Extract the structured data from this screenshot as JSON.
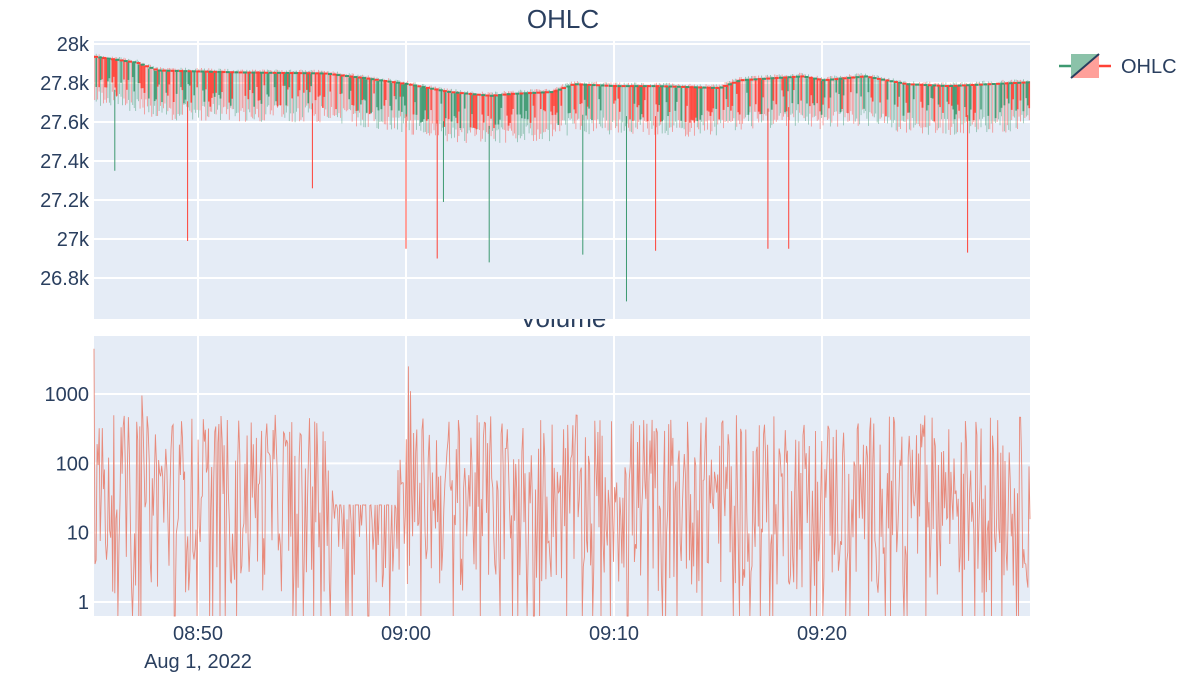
{
  "colors": {
    "plot_bg": "#e5ecf6",
    "grid": "#ffffff",
    "text": "#2a3f5f",
    "increasing": "#3d9970",
    "decreasing": "#ff4136",
    "volume_line": "#e8806e"
  },
  "legend": {
    "label": "OHLC",
    "position": "top-right",
    "icon": "candlestick-legend-icon"
  },
  "chart_data": [
    {
      "type": "candlestick",
      "title": "OHLC",
      "xlabel": "",
      "ylabel": "",
      "x_range": [
        "2022-08-01T08:45:00",
        "2022-08-01T09:30:00"
      ],
      "ylim": [
        26600,
        28000
      ],
      "yticks": [
        26800,
        27000,
        27200,
        27400,
        27600,
        27800,
        28000
      ],
      "ytick_labels": [
        "26.8k",
        "27k",
        "27.2k",
        "27.4k",
        "27.6k",
        "27.8k",
        "28k"
      ],
      "grid": true,
      "series": [
        {
          "name": "OHLC",
          "close_trend": [
            {
              "t": "08:45",
              "v": 27930
            },
            {
              "t": "08:47",
              "v": 27900
            },
            {
              "t": "08:48",
              "v": 27860
            },
            {
              "t": "08:52",
              "v": 27850
            },
            {
              "t": "08:56",
              "v": 27845
            },
            {
              "t": "08:58",
              "v": 27820
            },
            {
              "t": "09:00",
              "v": 27790
            },
            {
              "t": "09:01",
              "v": 27770
            },
            {
              "t": "09:02",
              "v": 27750
            },
            {
              "t": "09:04",
              "v": 27730
            },
            {
              "t": "09:05",
              "v": 27740
            },
            {
              "t": "09:07",
              "v": 27750
            },
            {
              "t": "09:08",
              "v": 27790
            },
            {
              "t": "09:10",
              "v": 27780
            },
            {
              "t": "09:12",
              "v": 27780
            },
            {
              "t": "09:15",
              "v": 27770
            },
            {
              "t": "09:16",
              "v": 27810
            },
            {
              "t": "09:19",
              "v": 27830
            },
            {
              "t": "09:20",
              "v": 27810
            },
            {
              "t": "09:22",
              "v": 27830
            },
            {
              "t": "09:24",
              "v": 27790
            },
            {
              "t": "09:26",
              "v": 27780
            },
            {
              "t": "09:28",
              "v": 27790
            },
            {
              "t": "09:30",
              "v": 27800
            }
          ],
          "low_wicks": [
            {
              "t": "08:46",
              "v": 27350,
              "dir": "up"
            },
            {
              "t": "08:49.5",
              "v": 26990,
              "dir": "down"
            },
            {
              "t": "08:55.5",
              "v": 27260,
              "dir": "down"
            },
            {
              "t": "09:00",
              "v": 26950,
              "dir": "down"
            },
            {
              "t": "09:01.5",
              "v": 26900,
              "dir": "down"
            },
            {
              "t": "09:01.8",
              "v": 27190,
              "dir": "up"
            },
            {
              "t": "09:04",
              "v": 26880,
              "dir": "up"
            },
            {
              "t": "09:08.5",
              "v": 26920,
              "dir": "up"
            },
            {
              "t": "09:10.6",
              "v": 26680,
              "dir": "up"
            },
            {
              "t": "09:12",
              "v": 26940,
              "dir": "down"
            },
            {
              "t": "09:17.4",
              "v": 26950,
              "dir": "down"
            },
            {
              "t": "09:18.4",
              "v": 26950,
              "dir": "down"
            },
            {
              "t": "09:27",
              "v": 26930,
              "dir": "down"
            }
          ]
        }
      ]
    },
    {
      "type": "line",
      "title": "Volume",
      "xlabel": "",
      "ylabel": "",
      "y_scale": "log",
      "yticks": [
        1,
        10,
        100,
        1000
      ],
      "ytick_labels": [
        "1",
        "10",
        "100",
        "1000"
      ],
      "x_ticks": [
        "08:50",
        "09:00",
        "09:10",
        "09:20"
      ],
      "x_tick_values": [
        "2022-08-01T08:50:00",
        "2022-08-01T09:00:00",
        "2022-08-01T09:10:00",
        "2022-08-01T09:20:00"
      ],
      "x_date_label": "Aug 1, 2022",
      "grid": true,
      "notable_peaks": [
        {
          "t": "08:45",
          "v": 4500
        },
        {
          "t": "08:47.3",
          "v": 950
        },
        {
          "t": "09:00.1",
          "v": 2500
        },
        {
          "t": "09:00.2",
          "v": 1100
        }
      ],
      "typical_range": [
        1,
        500
      ]
    }
  ]
}
